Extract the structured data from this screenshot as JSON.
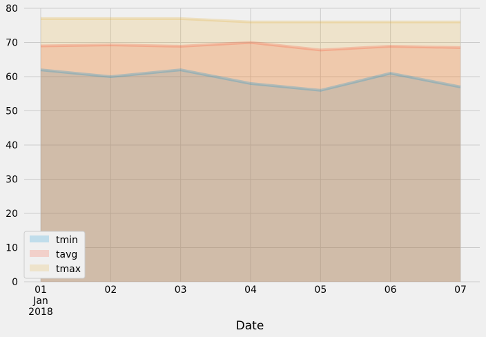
{
  "chart_data": {
    "type": "area",
    "title": "",
    "xlabel": "Date",
    "ylabel": "",
    "x": [
      "01",
      "02",
      "03",
      "04",
      "05",
      "06",
      "07"
    ],
    "x_sublabel": [
      "Jan",
      "2018"
    ],
    "ylim": [
      0,
      80
    ],
    "yticks": [
      "0",
      "10",
      "20",
      "30",
      "40",
      "50",
      "60",
      "70",
      "80"
    ],
    "grid": true,
    "stacked": false,
    "legend": {
      "position": "lower-left"
    },
    "series": [
      {
        "name": "tmin",
        "color": "#008fd5",
        "values": [
          62,
          60,
          62,
          58,
          56,
          61,
          57
        ]
      },
      {
        "name": "tavg",
        "color": "#fc4f30",
        "values": [
          69,
          69.3,
          68.9,
          70,
          67.8,
          68.9,
          68.5
        ]
      },
      {
        "name": "tmax",
        "color": "#e5ae38",
        "values": [
          77,
          77,
          77,
          76,
          76,
          76,
          76
        ]
      }
    ]
  }
}
